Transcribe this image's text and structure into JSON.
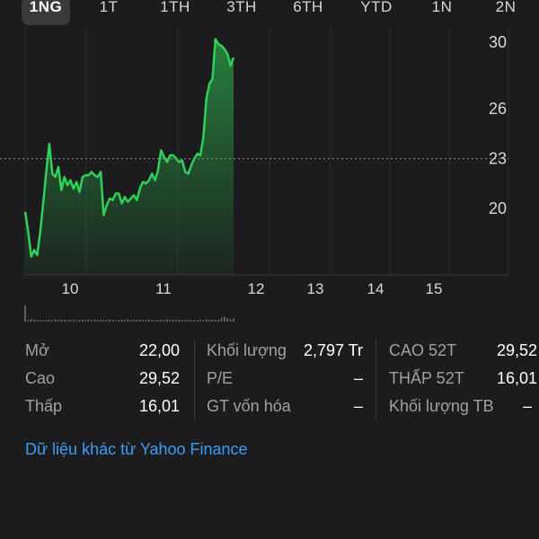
{
  "range_tabs": [
    {
      "label": "1NG",
      "active": true
    },
    {
      "label": "1T",
      "active": false
    },
    {
      "label": "1TH",
      "active": false
    },
    {
      "label": "3TH",
      "active": false
    },
    {
      "label": "6TH",
      "active": false
    },
    {
      "label": "YTD",
      "active": false
    },
    {
      "label": "1N",
      "active": false
    },
    {
      "label": "2N",
      "active": false
    }
  ],
  "chart_data": {
    "type": "area",
    "x_tick_labels": [
      "10",
      "11",
      "12",
      "13",
      "14",
      "15"
    ],
    "y_tick_labels": [
      "30",
      "26",
      "23",
      "20"
    ],
    "y_ticks": [
      30,
      26,
      23,
      20
    ],
    "ylim": [
      16.0,
      30.5
    ],
    "dashed_reference_value": 23,
    "series": [
      {
        "values": [
          19.8,
          18.6,
          17.1,
          17.5,
          17.2,
          18.6,
          20.4,
          22.2,
          23.9,
          22.1,
          21.9,
          22.5,
          21.1,
          21.9,
          21.4,
          21.7,
          21.2,
          21.6,
          21.0,
          21.9,
          22.0,
          22.0,
          22.2,
          22.0,
          21.9,
          22.2,
          19.6,
          20.2,
          20.6,
          20.5,
          20.9,
          20.9,
          20.3,
          20.7,
          20.4,
          20.6,
          20.8,
          20.5,
          21.2,
          21.6,
          21.5,
          21.7,
          22.1,
          21.7,
          22.3,
          23.5,
          23.1,
          22.8,
          23.2,
          23.2,
          23.0,
          22.8,
          22.9,
          22.2,
          22.1,
          22.6,
          23.0,
          23.3,
          23.2,
          24.3,
          26.6,
          27.5,
          27.8,
          30.2,
          29.9,
          29.8,
          29.6,
          29.3,
          28.6,
          29.1
        ],
        "color": "#30d158"
      }
    ],
    "volume_bars": [
      1.0,
      0.1,
      0.15,
      0.1,
      0.12,
      0.1,
      0.08,
      0.1,
      0.12,
      0.1,
      0.15,
      0.1,
      0.12,
      0.1,
      0.1,
      0.12,
      0.1,
      0.08,
      0.1,
      0.12,
      0.1,
      0.15,
      0.1,
      0.12,
      0.1,
      0.12,
      0.1,
      0.1,
      0.12,
      0.1,
      0.08,
      0.1,
      0.12,
      0.1,
      0.15,
      0.1,
      0.12,
      0.1,
      0.12,
      0.1,
      0.1,
      0.12,
      0.1,
      0.08,
      0.1,
      0.12,
      0.1,
      0.15,
      0.1,
      0.12,
      0.1,
      0.12,
      0.1,
      0.1,
      0.12,
      0.1,
      0.08,
      0.1,
      0.12,
      0.1,
      0.15,
      0.1,
      0.12,
      0.1,
      0.12,
      0.25,
      0.3,
      0.2,
      0.15,
      0.2
    ]
  },
  "stats": {
    "col1": [
      {
        "label": "Mở",
        "value": "22,00"
      },
      {
        "label": "Cao",
        "value": "29,52"
      },
      {
        "label": "Thấp",
        "value": "16,01"
      }
    ],
    "col2": [
      {
        "label": "Khối lượng",
        "value": "2,797 Tr"
      },
      {
        "label": "P/E",
        "value": "–"
      },
      {
        "label": "GT vốn hóa",
        "value": "–"
      }
    ],
    "col3": [
      {
        "label": "CAO 52T",
        "value": "29,52"
      },
      {
        "label": "THẤP 52T",
        "value": "16,01"
      },
      {
        "label": "Khối lượng TB",
        "value": "–"
      }
    ]
  },
  "more_link": "Dữ liệu khác từ Yahoo Finance"
}
